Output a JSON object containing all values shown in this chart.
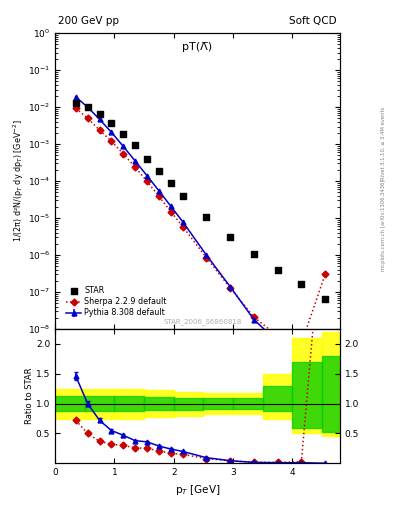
{
  "title_left": "200 GeV pp",
  "title_right": "Soft QCD",
  "panel_title": "pT(Λ̅)",
  "watermark": "STAR_2006_S6860818",
  "right_label_top": "Rivet 3.1.10, ≥ 3.4M events",
  "right_label_bot": "mcplots.cern.ch [arXiv:1306.3436]",
  "xlabel": "p$_T$ [GeV]",
  "ylabel": "1/(2π) d²N/(p$_T$ dy dp$_T$) [GeV$^{-2}$]",
  "ylabel_ratio": "Ratio to STAR",
  "star_x": [
    0.35,
    0.55,
    0.75,
    0.95,
    1.15,
    1.35,
    1.55,
    1.75,
    1.95,
    2.15,
    2.55,
    2.95,
    3.35,
    3.75,
    4.15,
    4.55
  ],
  "star_y": [
    0.013,
    0.01,
    0.0065,
    0.0038,
    0.00185,
    0.00092,
    0.00039,
    0.00019,
    8.8e-05,
    4e-05,
    1.05e-05,
    3.1e-06,
    1.1e-06,
    4e-07,
    1.6e-07,
    6.5e-08
  ],
  "pythia_x": [
    0.35,
    0.55,
    0.75,
    0.95,
    1.15,
    1.35,
    1.55,
    1.75,
    1.95,
    2.15,
    2.55,
    2.95,
    3.35,
    3.75,
    4.15,
    4.55
  ],
  "pythia_y": [
    0.019,
    0.01,
    0.0047,
    0.0021,
    0.00087,
    0.00035,
    0.00014,
    5.5e-05,
    2.1e-05,
    8e-06,
    1e-06,
    1.4e-07,
    1.8e-08,
    4.5e-09,
    1.8e-09,
    1.5e-10
  ],
  "pythia_yerr_lo": [
    0.001,
    0.0005,
    0.0002,
    8e-05,
    3e-05,
    1.2e-05,
    5e-06,
    2e-06,
    8e-07,
    3e-07,
    5e-08,
    8e-09,
    2e-09,
    5e-10,
    2e-10,
    5e-11
  ],
  "pythia_yerr_hi": [
    0.001,
    0.0005,
    0.0002,
    8e-05,
    3e-05,
    1.2e-05,
    5e-06,
    2e-06,
    8e-07,
    3e-07,
    5e-08,
    8e-09,
    2e-09,
    5e-10,
    2e-10,
    5e-11
  ],
  "sherpa_x": [
    0.35,
    0.55,
    0.75,
    0.95,
    1.15,
    1.35,
    1.55,
    1.75,
    1.95,
    2.15,
    2.55,
    2.95,
    3.35,
    3.75,
    4.15,
    4.55
  ],
  "sherpa_y": [
    0.0094,
    0.005,
    0.0024,
    0.0012,
    0.00055,
    0.00024,
    9.8e-05,
    3.9e-05,
    1.5e-05,
    5.9e-06,
    8.5e-07,
    1.3e-07,
    2.1e-08,
    6.5e-09,
    4e-09,
    3e-07
  ],
  "ratio_pythia_x": [
    0.35,
    0.55,
    0.75,
    0.95,
    1.15,
    1.35,
    1.55,
    1.75,
    1.95,
    2.15,
    2.55,
    2.95,
    3.35,
    3.75,
    4.15,
    4.55
  ],
  "ratio_pythia_y": [
    1.46,
    1.0,
    0.72,
    0.55,
    0.47,
    0.38,
    0.36,
    0.29,
    0.24,
    0.2,
    0.095,
    0.045,
    0.016,
    0.011,
    0.011,
    0.0022
  ],
  "ratio_pythia_yerr": [
    0.07,
    0.04,
    0.035,
    0.03,
    0.022,
    0.018,
    0.016,
    0.014,
    0.012,
    0.01,
    0.008,
    0.006,
    0.004,
    0.004,
    0.004,
    0.002
  ],
  "ratio_sherpa_x": [
    0.35,
    0.55,
    0.75,
    0.95,
    1.15,
    1.35,
    1.55,
    1.75,
    1.95,
    2.15,
    2.55,
    2.95,
    3.35,
    3.75,
    4.15,
    4.55
  ],
  "ratio_sherpa_y": [
    0.72,
    0.5,
    0.37,
    0.32,
    0.3,
    0.26,
    0.25,
    0.21,
    0.17,
    0.15,
    0.081,
    0.042,
    0.019,
    0.016,
    0.025,
    4.6
  ],
  "band_edges": [
    0.0,
    0.5,
    1.0,
    1.5,
    2.0,
    2.5,
    3.0,
    3.5,
    4.0,
    4.5,
    5.0
  ],
  "band_yellow_lo": [
    0.75,
    0.75,
    0.75,
    0.78,
    0.8,
    0.82,
    0.82,
    0.75,
    0.5,
    0.45,
    0.45
  ],
  "band_yellow_hi": [
    1.25,
    1.25,
    1.25,
    1.22,
    1.2,
    1.18,
    1.18,
    1.5,
    2.1,
    2.2,
    2.2
  ],
  "band_green_lo": [
    0.87,
    0.87,
    0.87,
    0.89,
    0.9,
    0.91,
    0.91,
    0.88,
    0.6,
    0.52,
    0.52
  ],
  "band_green_hi": [
    1.13,
    1.13,
    1.13,
    1.11,
    1.1,
    1.09,
    1.09,
    1.3,
    1.7,
    1.8,
    1.8
  ],
  "star_color": "black",
  "pythia_color": "#0000cc",
  "sherpa_color": "#cc0000",
  "xlim": [
    0.0,
    4.8
  ],
  "ylim_main": [
    1e-08,
    1.0
  ],
  "ylim_ratio": [
    0.0,
    2.25
  ],
  "ratio_yticks": [
    0.5,
    1.0,
    1.5,
    2.0
  ]
}
